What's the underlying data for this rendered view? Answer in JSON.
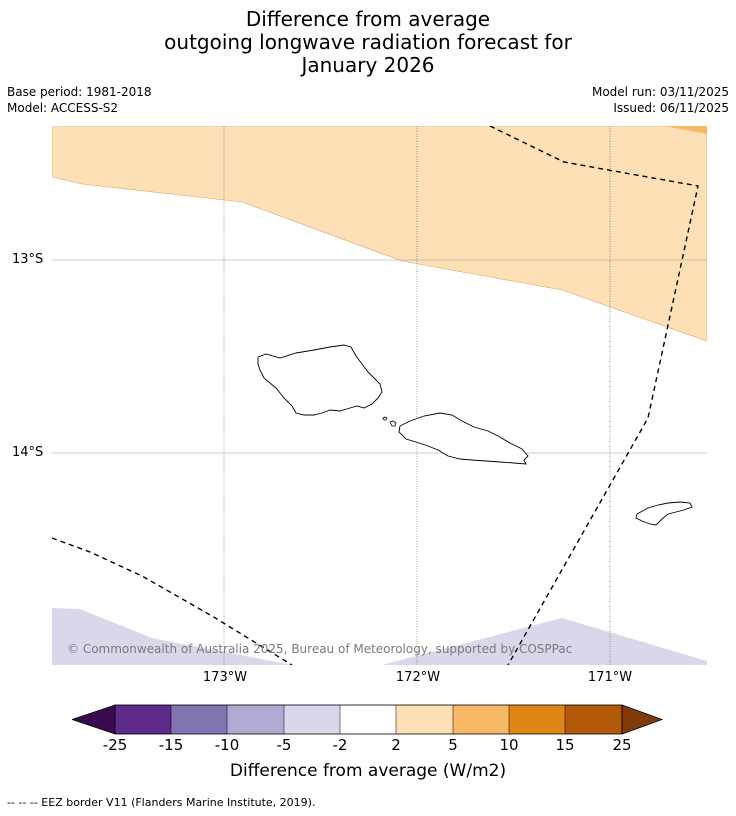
{
  "title": {
    "line1": "Difference from average",
    "line2": "outgoing longwave radiation forecast for",
    "line3": "January 2026"
  },
  "meta": {
    "base_period": "Base period: 1981-2018",
    "model": "Model: ACCESS-S2",
    "model_run": "Model run: 03/11/2025",
    "issued": "Issued: 06/11/2025"
  },
  "map": {
    "lat_labels": [
      "13°S",
      "14°S"
    ],
    "lon_labels": [
      "173°W",
      "172°W",
      "171°W"
    ],
    "copyright": "© Commonwealth of Australia 2025, Bureau of Meteorology, supported by COSPPac",
    "colors": {
      "c2_5": "#fde0b6",
      "c5_10": "#f9b866",
      "cneg5_2": "#d8d8ea",
      "line": "#000000"
    }
  },
  "colorbar": {
    "ticks": [
      "-25",
      "-15",
      "-10",
      "-5",
      "-2",
      "2",
      "5",
      "10",
      "15",
      "25"
    ],
    "colors": [
      "#3b0b52",
      "#5e2a8c",
      "#8473b1",
      "#b0a9d2",
      "#d8d8ea",
      "#ffffff",
      "#fde0b6",
      "#f9b866",
      "#e08617",
      "#b35806",
      "#7f3b08"
    ],
    "label": "Difference from average (W/m2)"
  },
  "footnote": "--  --  -- EEZ border V11 (Flanders Marine Institute, 2019)."
}
